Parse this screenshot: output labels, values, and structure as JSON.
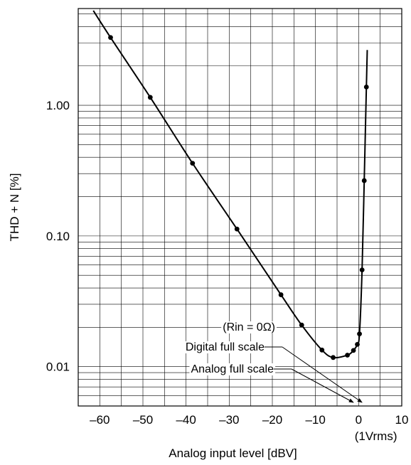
{
  "chart_data": {
    "type": "line",
    "title": "",
    "xlabel": "Analog input level [dBV]",
    "ylabel": "THD + N [%]",
    "xlim": [
      -65,
      10
    ],
    "ylim": [
      0.005,
      5.5
    ],
    "y_scale": "log",
    "grid": true,
    "x_ticks": [
      {
        "value": -60,
        "label": "–60"
      },
      {
        "value": -50,
        "label": "–50"
      },
      {
        "value": -40,
        "label": "–40"
      },
      {
        "value": -30,
        "label": "–30"
      },
      {
        "value": -20,
        "label": "–20"
      },
      {
        "value": -10,
        "label": "–10"
      },
      {
        "value": 0,
        "label": "0"
      },
      {
        "value": 10,
        "label": "10"
      }
    ],
    "x_tick_sublabel": "(1Vrms)",
    "y_ticks": [
      {
        "value": 0.01,
        "label": "0.01"
      },
      {
        "value": 0.1,
        "label": "0.10"
      },
      {
        "value": 1.0,
        "label": "1.00"
      }
    ],
    "series": [
      {
        "color": "#000000",
        "points": [
          {
            "x": -57.5,
            "y": 3.3
          },
          {
            "x": -48.3,
            "y": 1.15
          },
          {
            "x": -38.5,
            "y": 0.36
          },
          {
            "x": -28.2,
            "y": 0.113
          },
          {
            "x": -18.0,
            "y": 0.0355
          },
          {
            "x": -13.2,
            "y": 0.0208
          },
          {
            "x": -8.5,
            "y": 0.0134
          },
          {
            "x": -5.9,
            "y": 0.01175
          },
          {
            "x": -2.6,
            "y": 0.01225
          },
          {
            "x": -1.2,
            "y": 0.0133
          },
          {
            "x": -0.3,
            "y": 0.0148
          },
          {
            "x": 0.2,
            "y": 0.0178
          },
          {
            "x": 0.8,
            "y": 0.055
          },
          {
            "x": 1.3,
            "y": 0.265
          },
          {
            "x": 1.8,
            "y": 1.38
          }
        ]
      }
    ],
    "annotations": [
      {
        "text": "(Rin = 0Ω)"
      },
      {
        "text": "Digital full scale"
      },
      {
        "text": "Analog full scale"
      }
    ]
  }
}
